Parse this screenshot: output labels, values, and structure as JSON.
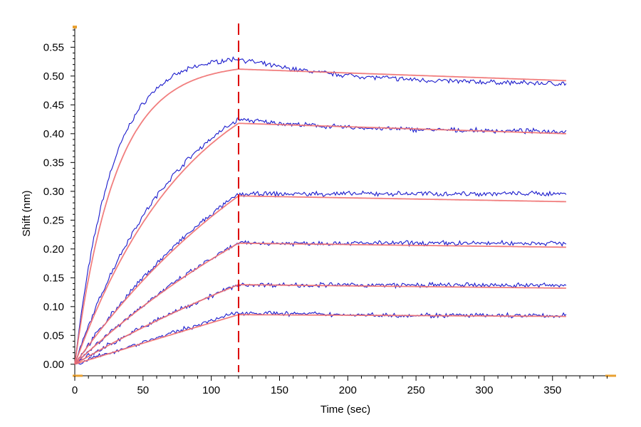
{
  "chart_data": {
    "type": "line",
    "xlabel": "Time (sec)",
    "ylabel": "Shift (nm)",
    "xlim": [
      0,
      395
    ],
    "ylim": [
      -0.02,
      0.585
    ],
    "x_ticks": [
      0,
      50,
      100,
      150,
      200,
      250,
      300,
      350
    ],
    "y_ticks": [
      0.0,
      0.05,
      0.1,
      0.15,
      0.2,
      0.25,
      0.3,
      0.35,
      0.4,
      0.45,
      0.5,
      0.55
    ],
    "y_tick_labels": [
      "0.00",
      "0.05",
      "0.10",
      "0.15",
      "0.20",
      "0.25",
      "0.30",
      "0.35",
      "0.40",
      "0.45",
      "0.50",
      "0.55"
    ],
    "x_tick_labels": [
      "0",
      "50",
      "100",
      "150",
      "200",
      "250",
      "300",
      "350"
    ],
    "grid": false,
    "annotations": [
      {
        "type": "vertical-dashed-line",
        "x": 120,
        "color": "#dd0000"
      }
    ],
    "association_end": 120,
    "x_end": 360,
    "colors": {
      "measured": "#1a1acc",
      "fit": "#f07070",
      "marker": "#dd0000",
      "axis_corner": "#e8a030"
    },
    "series": [
      {
        "peak_measured": 0.53,
        "peak_fit": 0.512,
        "end_measured": 0.487,
        "end_fit": 0.492,
        "curvature": 30
      },
      {
        "peak_measured": 0.425,
        "peak_fit": 0.418,
        "end_measured": 0.404,
        "end_fit": 0.4,
        "curvature": 85
      },
      {
        "peak_measured": 0.295,
        "peak_fit": 0.292,
        "end_measured": 0.296,
        "end_fit": 0.282,
        "curvature": 180
      },
      {
        "peak_measured": 0.21,
        "peak_fit": 0.21,
        "end_measured": 0.21,
        "end_fit": 0.203,
        "curvature": 240
      },
      {
        "peak_measured": 0.138,
        "peak_fit": 0.138,
        "end_measured": 0.137,
        "end_fit": 0.132,
        "curvature": 320
      },
      {
        "peak_measured": 0.09,
        "peak_fit": 0.086,
        "end_measured": 0.084,
        "end_fit": 0.083,
        "curvature": 2000
      }
    ]
  }
}
